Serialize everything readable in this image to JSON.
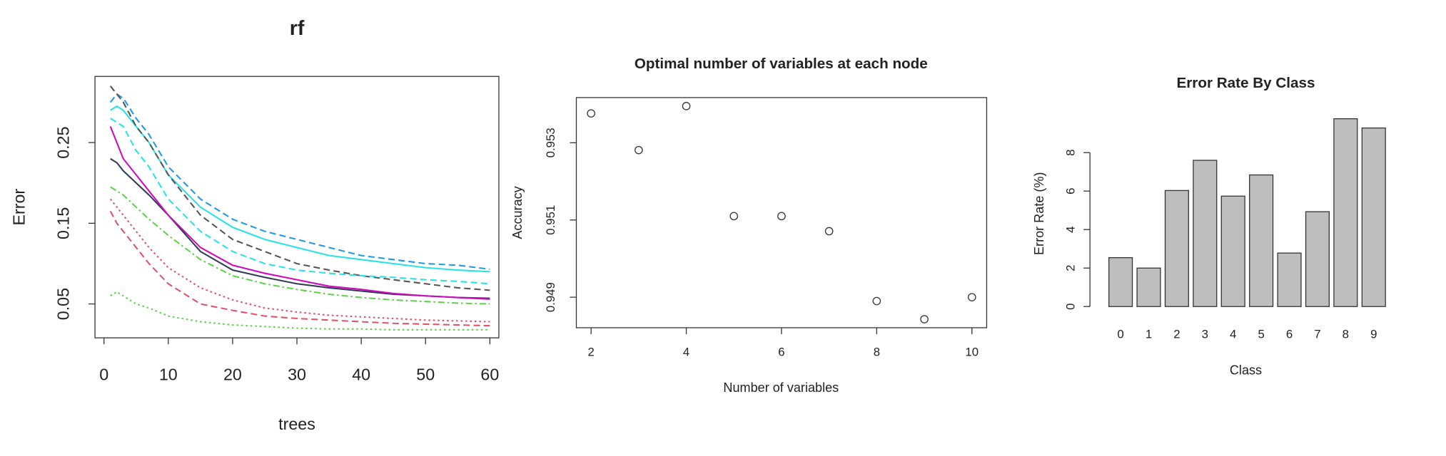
{
  "chart_data": [
    {
      "type": "line",
      "title": "rf",
      "x_label": "trees",
      "y_label": "Error",
      "x": [
        1,
        2,
        3,
        5,
        7,
        10,
        15,
        20,
        25,
        30,
        35,
        40,
        45,
        50,
        55,
        60
      ],
      "xlim": [
        -1.4,
        61.4
      ],
      "xticks": [
        0,
        10,
        20,
        30,
        40,
        50,
        60
      ],
      "ylim": [
        0.008,
        0.332
      ],
      "yticks": [
        0.05,
        0.15,
        0.25
      ],
      "series": [
        {
          "color": "#2f3b55",
          "dash": "solid",
          "values": [
            0.23,
            0.225,
            0.215,
            0.2,
            0.185,
            0.16,
            0.115,
            0.092,
            0.083,
            0.075,
            0.07,
            0.066,
            0.062,
            0.06,
            0.058,
            0.057
          ]
        },
        {
          "color": "#DF536B",
          "dash": "dashed",
          "values": [
            0.165,
            0.15,
            0.14,
            0.12,
            0.1,
            0.075,
            0.05,
            0.042,
            0.035,
            0.032,
            0.03,
            0.028,
            0.026,
            0.025,
            0.024,
            0.023
          ]
        },
        {
          "color": "#61D04F",
          "dash": "dashdot",
          "values": [
            0.195,
            0.19,
            0.185,
            0.17,
            0.155,
            0.135,
            0.105,
            0.085,
            0.075,
            0.068,
            0.062,
            0.058,
            0.055,
            0.053,
            0.051,
            0.05
          ]
        },
        {
          "color": "#2297E6",
          "dash": "dashed",
          "values": [
            0.3,
            0.31,
            0.305,
            0.28,
            0.26,
            0.22,
            0.18,
            0.155,
            0.14,
            0.13,
            0.12,
            0.11,
            0.105,
            0.1,
            0.098,
            0.093
          ]
        },
        {
          "color": "#28E2E5",
          "dash": "solid",
          "values": [
            0.29,
            0.295,
            0.29,
            0.27,
            0.25,
            0.21,
            0.17,
            0.145,
            0.13,
            0.12,
            0.11,
            0.105,
            0.1,
            0.095,
            0.092,
            0.09
          ]
        },
        {
          "color": "#CD0BBC",
          "dash": "solid",
          "values": [
            0.27,
            0.25,
            0.23,
            0.21,
            0.19,
            0.16,
            0.12,
            0.098,
            0.088,
            0.08,
            0.072,
            0.068,
            0.063,
            0.06,
            0.058,
            0.056
          ]
        },
        {
          "color": "#555555",
          "dash": "dashed",
          "values": [
            0.32,
            0.31,
            0.3,
            0.27,
            0.25,
            0.21,
            0.16,
            0.13,
            0.115,
            0.1,
            0.092,
            0.085,
            0.08,
            0.075,
            0.07,
            0.067
          ]
        },
        {
          "color": "#28E2E5",
          "dash": "dashed",
          "values": [
            0.28,
            0.275,
            0.27,
            0.24,
            0.22,
            0.18,
            0.14,
            0.115,
            0.1,
            0.092,
            0.088,
            0.085,
            0.083,
            0.08,
            0.078,
            0.075
          ]
        },
        {
          "color": "#DF536B",
          "dash": "dotted",
          "values": [
            0.18,
            0.17,
            0.16,
            0.14,
            0.12,
            0.095,
            0.07,
            0.055,
            0.045,
            0.04,
            0.036,
            0.034,
            0.032,
            0.03,
            0.029,
            0.028
          ]
        },
        {
          "color": "#61D04F",
          "dash": "dotted",
          "values": [
            0.06,
            0.065,
            0.06,
            0.05,
            0.045,
            0.035,
            0.028,
            0.024,
            0.022,
            0.02,
            0.019,
            0.019,
            0.018,
            0.018,
            0.018,
            0.018
          ]
        }
      ]
    },
    {
      "type": "scatter",
      "title": "Optimal number of variables at each node",
      "x_label": "Number of variables",
      "y_label": "Accuracy",
      "x": [
        2,
        3,
        4,
        5,
        6,
        7,
        8,
        9,
        10
      ],
      "values": [
        0.95376,
        0.95281,
        0.95395,
        0.9511,
        0.9511,
        0.95071,
        0.9489,
        0.94843,
        0.949
      ],
      "xlim": [
        1.69,
        10.31
      ],
      "xticks": [
        2,
        4,
        6,
        8,
        10
      ],
      "ylim": [
        0.94821,
        0.95417
      ],
      "yticks": [
        0.949,
        0.951,
        0.953
      ],
      "color": "#333333"
    },
    {
      "type": "bar",
      "title": "Error Rate By Class",
      "x_label": "Class",
      "y_label": "Error Rate (%)",
      "categories": [
        "0",
        "1",
        "2",
        "3",
        "4",
        "5",
        "6",
        "7",
        "8",
        "9"
      ],
      "values": [
        2.54,
        2.0,
        6.03,
        7.6,
        5.74,
        6.84,
        2.78,
        4.93,
        9.76,
        9.28
      ],
      "ylim": [
        0,
        9.76
      ],
      "yticks": [
        0,
        2,
        4,
        6,
        8
      ],
      "color": "#bebebe"
    }
  ]
}
